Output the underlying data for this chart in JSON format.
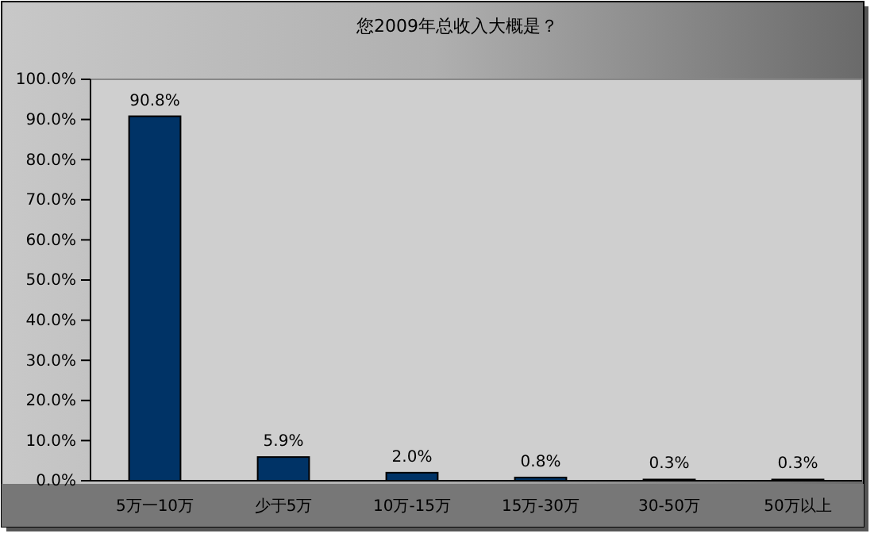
{
  "chart_data": {
    "type": "bar",
    "title": "您2009年总收入大概是？",
    "categories": [
      "5万一10万",
      "少于5万",
      "10万-15万",
      "15万-30万",
      "30-50万",
      "50万以上"
    ],
    "values": [
      90.8,
      5.9,
      2.0,
      0.8,
      0.3,
      0.3
    ],
    "value_labels": [
      "90.8%",
      "5.9%",
      "2.0%",
      "0.8%",
      "0.3%",
      "0.3%"
    ],
    "color": "#003366",
    "ylim": [
      0,
      100
    ],
    "yticks": [
      {
        "value": 0,
        "label": "0.0%"
      },
      {
        "value": 10,
        "label": "10.0%"
      },
      {
        "value": 20,
        "label": "20.0%"
      },
      {
        "value": 30,
        "label": "30.0%"
      },
      {
        "value": 40,
        "label": "40.0%"
      },
      {
        "value": 50,
        "label": "50.0%"
      },
      {
        "value": 60,
        "label": "60.0%"
      },
      {
        "value": 70,
        "label": "70.0%"
      },
      {
        "value": 80,
        "label": "80.0%"
      },
      {
        "value": 90,
        "label": "90.0%"
      },
      {
        "value": 100,
        "label": "100.0%"
      }
    ],
    "grid": false
  }
}
